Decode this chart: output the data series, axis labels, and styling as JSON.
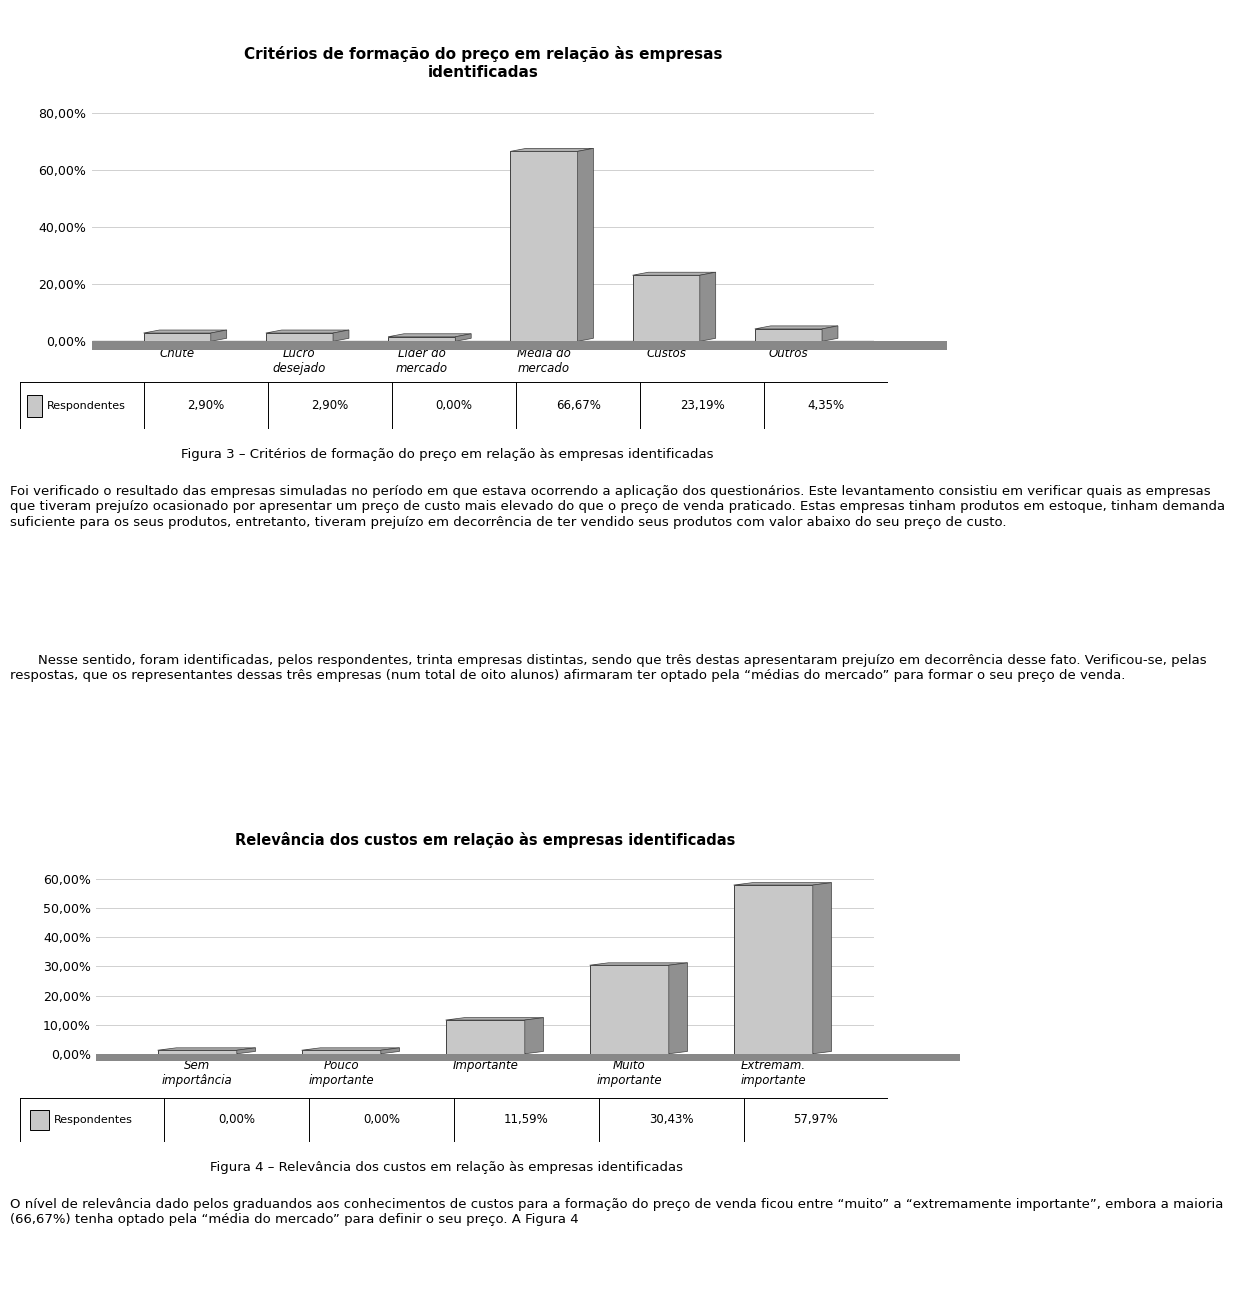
{
  "chart1": {
    "title": "Critérios de formação do preço em relação às empresas\nidentificadas",
    "categories": [
      "Chute",
      "Lucro\ndesejado",
      "Líder do\nmercado",
      "Média do\nmercado",
      "Custos",
      "Outros"
    ],
    "values": [
      2.9,
      2.9,
      0.0,
      66.67,
      23.19,
      4.35
    ],
    "yticks": [
      0.0,
      20.0,
      40.0,
      60.0,
      80.0
    ],
    "ytick_labels": [
      "0,00%",
      "20,00%",
      "40,00%",
      "60,00%",
      "80,00%"
    ],
    "ylim": [
      0,
      88
    ],
    "legend_label": "Respondentes",
    "table_values": [
      "2,90%",
      "2,90%",
      "0,00%",
      "66,67%",
      "23,19%",
      "4,35%"
    ]
  },
  "chart2": {
    "title": "Relevância dos custos em relação às empresas identificadas",
    "categories": [
      "Sem\nimportância",
      "Pouco\nimportante",
      "Importante",
      "Muito\nimportante",
      "Extremam.\nimportante"
    ],
    "values": [
      0.0,
      0.0,
      11.59,
      30.43,
      57.97
    ],
    "yticks": [
      0.0,
      10.0,
      20.0,
      30.0,
      40.0,
      50.0,
      60.0
    ],
    "ytick_labels": [
      "0,00%",
      "10,00%",
      "20,00%",
      "30,00%",
      "40,00%",
      "50,00%",
      "60,00%"
    ],
    "ylim": [
      0,
      68
    ],
    "legend_label": "Respondentes",
    "table_values": [
      "0,00%",
      "0,00%",
      "11,59%",
      "30,43%",
      "57,97%"
    ]
  },
  "caption1": "Figura 3 – Critérios de formação do preço em relação às empresas identificadas",
  "caption2": "Figura 4 – Relevância dos custos em relação às empresas identificadas",
  "text1a": "Foi verificado o resultado das empresas simuladas no período em que estava ocorrendo a aplicação dos questionários. Este levantamento consistiu em verificar quais as empresas que tiveram prejuízo ocasionado por apresentar um preço de custo mais elevado do que o preço de venda praticado. Estas empresas tinham produtos em estoque, tinham demanda suficiente para os seus produtos, entretanto, tiveram prejuízo em decorrência de ter vendido seus produtos com valor abaixo do seu preço de custo.",
  "text2a": "Nesse sentido, foram identificadas, pelos respondentes, trinta empresas distintas, sendo que três destas apresentaram prejuízo em decorrência desse fato. Verificou-se, pelas respostas, que os representantes dessas três empresas (num total de oito alunos) afirmaram ter optado pela “médias do mercado” para formar o seu preço de venda.",
  "text3a": "O nível de relevância dado pelos graduandos aos conhecimentos de custos para a formação do preço de venda ficou entre “muito” a “extremamente importante”, embora a maioria (66,67%) tenha optado pela “média do mercado” para definir o seu preço. A Figura 4"
}
